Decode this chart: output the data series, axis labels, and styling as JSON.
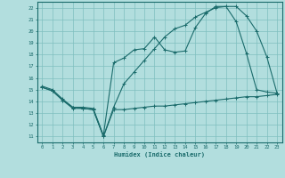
{
  "title": "",
  "xlabel": "Humidex (Indice chaleur)",
  "ylabel": "",
  "bg_color": "#b2dede",
  "line_color": "#1a6b6b",
  "grid_color": "#7fbfbf",
  "xlim": [
    -0.5,
    23.5
  ],
  "ylim": [
    10.5,
    22.5
  ],
  "xticks": [
    0,
    1,
    2,
    3,
    4,
    5,
    6,
    7,
    8,
    9,
    10,
    11,
    12,
    13,
    14,
    15,
    16,
    17,
    18,
    19,
    20,
    21,
    22,
    23
  ],
  "yticks": [
    11,
    12,
    13,
    14,
    15,
    16,
    17,
    18,
    19,
    20,
    21,
    22
  ],
  "line1_x": [
    0,
    1,
    2,
    3,
    4,
    5,
    6,
    7,
    8,
    9,
    10,
    11,
    12,
    13,
    14,
    15,
    16,
    17,
    18,
    19,
    20,
    21,
    22,
    23
  ],
  "line1_y": [
    15.2,
    14.9,
    14.1,
    13.4,
    13.4,
    13.3,
    11.0,
    13.3,
    13.3,
    13.4,
    13.5,
    13.6,
    13.6,
    13.7,
    13.8,
    13.9,
    14.0,
    14.1,
    14.2,
    14.3,
    14.4,
    14.4,
    14.5,
    14.6
  ],
  "line2_x": [
    0,
    1,
    2,
    3,
    4,
    5,
    6,
    7,
    8,
    9,
    10,
    11,
    12,
    13,
    14,
    15,
    16,
    17,
    18,
    19,
    20,
    21,
    22,
    23
  ],
  "line2_y": [
    15.3,
    15.0,
    14.2,
    13.5,
    13.5,
    13.4,
    11.1,
    17.3,
    17.7,
    18.4,
    18.5,
    19.5,
    18.4,
    18.2,
    18.3,
    20.3,
    21.5,
    22.1,
    22.1,
    20.8,
    18.1,
    15.0,
    14.8,
    14.7
  ],
  "line3_x": [
    0,
    1,
    2,
    3,
    4,
    5,
    6,
    7,
    8,
    9,
    10,
    11,
    12,
    13,
    14,
    15,
    16,
    17,
    18,
    19,
    20,
    21,
    22,
    23
  ],
  "line3_y": [
    15.2,
    14.9,
    14.1,
    13.5,
    13.4,
    13.3,
    11.0,
    13.5,
    15.5,
    16.5,
    17.5,
    18.5,
    19.5,
    20.2,
    20.5,
    21.2,
    21.6,
    22.0,
    22.1,
    22.1,
    21.3,
    20.0,
    17.8,
    14.7
  ]
}
